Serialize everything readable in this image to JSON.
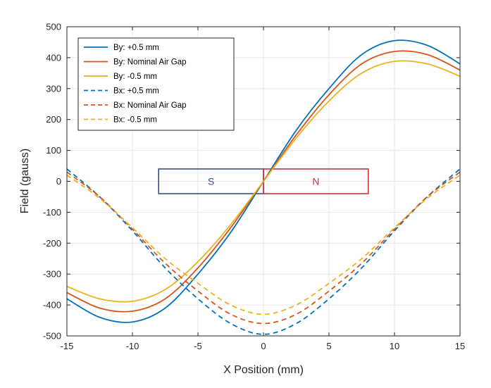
{
  "chart_data": {
    "type": "line",
    "xlabel": "X Position (mm)",
    "ylabel": "Field (gauss)",
    "xlim": [
      -15,
      15
    ],
    "ylim": [
      -500,
      500
    ],
    "xticks": [
      -15,
      -10,
      -5,
      0,
      5,
      10,
      15
    ],
    "yticks": [
      -500,
      -400,
      -300,
      -200,
      -100,
      0,
      100,
      200,
      300,
      400,
      500
    ],
    "grid": true,
    "legend_position": "top-left",
    "x": [
      -15,
      -12.5,
      -10,
      -7.5,
      -5,
      -2.5,
      0,
      2.5,
      5,
      7.5,
      10,
      12.5,
      15
    ],
    "series": [
      {
        "name": "By: +0.5 mm",
        "color": "#0072BD",
        "style": "solid",
        "values": [
          -380,
          -440,
          -455,
          -410,
          -300,
          -165,
          0,
          165,
          300,
          410,
          455,
          440,
          380
        ]
      },
      {
        "name": "By: Nominal Air Gap",
        "color": "#D95319",
        "style": "solid",
        "values": [
          -360,
          -410,
          -420,
          -380,
          -280,
          -150,
          0,
          150,
          280,
          380,
          420,
          410,
          360
        ]
      },
      {
        "name": "By: -0.5 mm",
        "color": "#EDB120",
        "style": "solid",
        "values": [
          -340,
          -380,
          -388,
          -350,
          -260,
          -140,
          0,
          140,
          260,
          350,
          388,
          380,
          340
        ]
      },
      {
        "name": "Bx: +0.5 mm",
        "color": "#0072BD",
        "style": "dashed",
        "values": [
          40,
          -50,
          -160,
          -280,
          -380,
          -460,
          -495,
          -460,
          -380,
          -280,
          -160,
          -50,
          40
        ]
      },
      {
        "name": "Bx: Nominal Air Gap",
        "color": "#D95319",
        "style": "dashed",
        "values": [
          30,
          -50,
          -155,
          -265,
          -355,
          -430,
          -460,
          -430,
          -355,
          -265,
          -155,
          -50,
          30
        ]
      },
      {
        "name": "Bx: -0.5 mm",
        "color": "#EDB120",
        "style": "dashed",
        "values": [
          20,
          -55,
          -150,
          -250,
          -330,
          -400,
          -430,
          -400,
          -330,
          -250,
          -150,
          -55,
          20
        ]
      }
    ],
    "annotations": [
      {
        "label": "S",
        "x_from": -8,
        "x_to": 0,
        "y_from": -40,
        "y_to": 40,
        "color": "#3B4A8C"
      },
      {
        "label": "N",
        "x_from": 0,
        "x_to": 8,
        "y_from": -40,
        "y_to": 40,
        "color": "#C8323C"
      }
    ]
  }
}
